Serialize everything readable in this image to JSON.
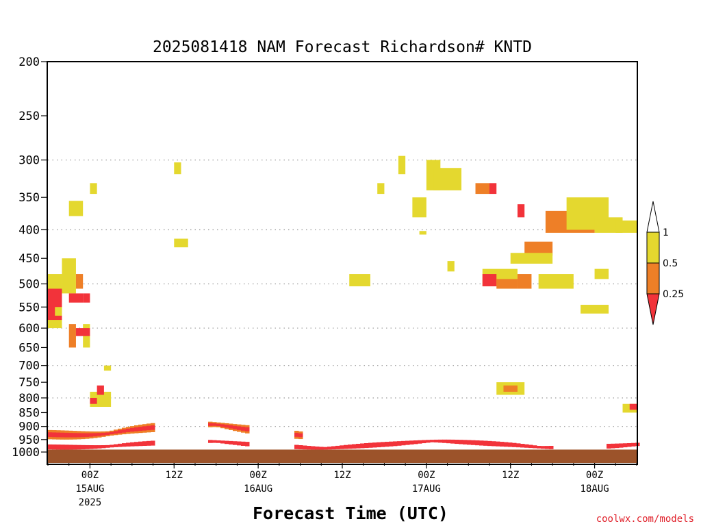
{
  "chart_data": {
    "type": "heatmap",
    "title": "2025081418 NAM Forecast Richardson# KNTD",
    "xlabel": "Forecast Time (UTC)",
    "ylabel": "",
    "y_axis": {
      "scale": "log",
      "reversed": true,
      "range": [
        1000,
        200
      ],
      "ticks": [
        200,
        250,
        300,
        350,
        400,
        450,
        500,
        550,
        600,
        650,
        700,
        750,
        800,
        850,
        900,
        950,
        1000
      ],
      "dotted_gridlines": [
        300,
        400,
        500,
        600,
        700,
        800,
        900
      ]
    },
    "x_axis": {
      "range_hours": [
        -6,
        78
      ],
      "ticks": [
        {
          "hour": 0,
          "label": "00Z",
          "date": "15AUG",
          "year": "2025"
        },
        {
          "hour": 12,
          "label": "12Z",
          "date": "",
          "year": ""
        },
        {
          "hour": 24,
          "label": "00Z",
          "date": "16AUG",
          "year": ""
        },
        {
          "hour": 36,
          "label": "12Z",
          "date": "",
          "year": ""
        },
        {
          "hour": 48,
          "label": "00Z",
          "date": "17AUG",
          "year": ""
        },
        {
          "hour": 60,
          "label": "12Z",
          "date": "",
          "year": ""
        },
        {
          "hour": 72,
          "label": "00Z",
          "date": "18AUG",
          "year": ""
        }
      ]
    },
    "colorbar": {
      "levels": [
        "1",
        "0.5",
        "0.25"
      ],
      "bins": [
        {
          "range": "0.5-1",
          "color": "#e4d82f"
        },
        {
          "range": "0.25-0.5",
          "color": "#ee7f27"
        },
        {
          "range": "<0.25",
          "color": "#f2333a"
        }
      ],
      "over_color": "#ffffff",
      "under_color": "#f2333a"
    },
    "surface_color": "#9c532a",
    "cells_hour_hour_ptop_pbot_bin": [
      [
        -6,
        -4,
        480,
        600,
        0
      ],
      [
        -6,
        -4,
        510,
        580,
        2
      ],
      [
        -4,
        -2,
        450,
        520,
        0
      ],
      [
        -3,
        -1,
        520,
        540,
        2
      ],
      [
        -2,
        -1,
        480,
        510,
        1
      ],
      [
        -1,
        0,
        520,
        540,
        2
      ],
      [
        -3,
        -2,
        590,
        650,
        1
      ],
      [
        -1,
        0,
        590,
        650,
        0
      ],
      [
        -2,
        0,
        600,
        620,
        2
      ],
      [
        -5,
        -4,
        550,
        570,
        0
      ],
      [
        -3,
        -1,
        355,
        378,
        0
      ],
      [
        0,
        1,
        330,
        345,
        0
      ],
      [
        12,
        13,
        303,
        318,
        0
      ],
      [
        12,
        14,
        415,
        430,
        0
      ],
      [
        0,
        3,
        780,
        830,
        0
      ],
      [
        0,
        1,
        800,
        820,
        2
      ],
      [
        1,
        2,
        760,
        790,
        2
      ],
      [
        2,
        3,
        700,
        715,
        0
      ],
      [
        44,
        45,
        295,
        318,
        0
      ],
      [
        41,
        42,
        330,
        345,
        0
      ],
      [
        46,
        48,
        350,
        380,
        0
      ],
      [
        47,
        48,
        402,
        408,
        0
      ],
      [
        48,
        50,
        300,
        340,
        0
      ],
      [
        49,
        53,
        310,
        340,
        0
      ],
      [
        51,
        52,
        455,
        475,
        0
      ],
      [
        37,
        40,
        480,
        505,
        0
      ],
      [
        55,
        57,
        330,
        345,
        1
      ],
      [
        57,
        58,
        330,
        345,
        2
      ],
      [
        56,
        61,
        470,
        505,
        0
      ],
      [
        56,
        58,
        480,
        505,
        2
      ],
      [
        58,
        61,
        490,
        510,
        1
      ],
      [
        61,
        62,
        360,
        380,
        2
      ],
      [
        62,
        66,
        420,
        445,
        1
      ],
      [
        60,
        66,
        440,
        460,
        0
      ],
      [
        64,
        69,
        480,
        510,
        0
      ],
      [
        61,
        63,
        480,
        510,
        1
      ],
      [
        65,
        72,
        370,
        405,
        1
      ],
      [
        70,
        71,
        355,
        380,
        2
      ],
      [
        68,
        74,
        350,
        400,
        0
      ],
      [
        72,
        76,
        380,
        405,
        0
      ],
      [
        75,
        78,
        385,
        405,
        0
      ],
      [
        72,
        74,
        470,
        490,
        0
      ],
      [
        70,
        74,
        545,
        565,
        0
      ],
      [
        58,
        62,
        750,
        790,
        0
      ],
      [
        59,
        61,
        760,
        780,
        1
      ],
      [
        76,
        78,
        820,
        850,
        0
      ],
      [
        77,
        78,
        820,
        840,
        2
      ]
    ],
    "bands_layer": [
      {
        "from": -6,
        "to": 78,
        "ptop": 990,
        "pbot": 1010,
        "bin": "surface"
      },
      {
        "from": -6,
        "to": 78,
        "ptop": 950,
        "pbot": 990,
        "bin": 2,
        "pattern": "patchy"
      },
      {
        "from": -6,
        "to": 30,
        "ptop": 880,
        "pbot": 950,
        "bin": 1,
        "pattern": "patchy"
      }
    ]
  },
  "credit": "coolwx.com/models"
}
